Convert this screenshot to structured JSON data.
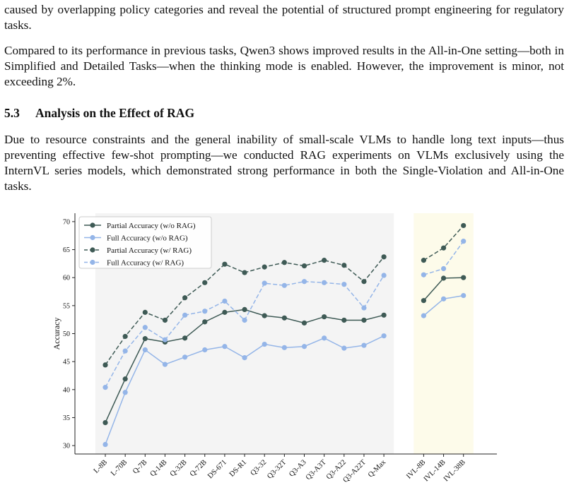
{
  "paragraphs": {
    "p1": "caused by overlapping policy categories and reveal the potential of structured prompt engineering for regulatory tasks.",
    "p2": "Compared to its performance in previous tasks, Qwen3 shows improved results in the All-in-One setting—both in Simplified and Detailed Tasks—when the thinking mode is enabled. However, the improvement is minor, not exceeding 2%.",
    "p3": "Due to resource constraints and the general inability of small-scale VLMs to handle long text inputs—thus preventing effective few-shot prompting—we conducted RAG experiments on VLMs exclusively using the InternVL series models, which demonstrated strong performance in both the Single-Violation and All-in-One tasks."
  },
  "section": {
    "number": "5.3",
    "title": "Analysis on the Effect of RAG"
  },
  "chart_data": {
    "type": "line",
    "ylabel": "Accuracy",
    "xlabel": "",
    "ylim": [
      28.5,
      71.5
    ],
    "yticks": [
      30,
      35,
      40,
      45,
      50,
      55,
      60,
      65,
      70
    ],
    "categories": [
      "L-8B",
      "L-70B",
      "Q-7B",
      "Q-14B",
      "Q-32B",
      "Q-72B",
      "DS-671",
      "DS-R1",
      "Q3-32",
      "Q3-32T",
      "Q3-A3",
      "Q3-A3T",
      "Q3-A22",
      "Q3-A22T",
      "Q-Max",
      "IVL-8B",
      "IVL-14B",
      "IVL-38B"
    ],
    "groups": [
      {
        "name": "",
        "start": 0,
        "end": 14,
        "background": "#f4f4f4"
      },
      {
        "name": "",
        "start": 15,
        "end": 17,
        "background": "#fdfbea"
      }
    ],
    "legend_position": "top-left",
    "series": [
      {
        "name": "Partial Accuracy (w/o RAG)",
        "color": "#3e5a55",
        "dashed": false,
        "values": [
          34.1,
          41.9,
          49.1,
          48.5,
          49.2,
          52.1,
          53.8,
          54.3,
          53.2,
          52.8,
          51.9,
          53.0,
          52.4,
          52.4,
          53.3,
          55.9,
          59.9,
          60.0
        ]
      },
      {
        "name": "Full Accuracy (w/o RAG)",
        "color": "#94b5e8",
        "dashed": false,
        "values": [
          30.2,
          39.5,
          47.1,
          44.5,
          45.8,
          47.1,
          47.7,
          45.7,
          48.1,
          47.5,
          47.7,
          49.2,
          47.4,
          47.9,
          49.6,
          53.2,
          56.2,
          56.8
        ]
      },
      {
        "name": "Partial Accuracy (w/ RAG)",
        "color": "#3e5a55",
        "dashed": true,
        "values": [
          44.4,
          49.5,
          53.8,
          52.4,
          56.4,
          59.1,
          62.4,
          60.9,
          61.9,
          62.7,
          62.1,
          63.1,
          62.2,
          59.3,
          63.7,
          63.1,
          65.3,
          69.3
        ]
      },
      {
        "name": "Full Accuracy (w/ RAG)",
        "color": "#94b5e8",
        "dashed": true,
        "values": [
          40.4,
          46.9,
          51.1,
          48.9,
          53.3,
          54.0,
          55.8,
          52.4,
          59.0,
          58.6,
          59.3,
          59.1,
          58.8,
          54.6,
          60.4,
          60.5,
          61.6,
          66.5
        ]
      }
    ]
  }
}
